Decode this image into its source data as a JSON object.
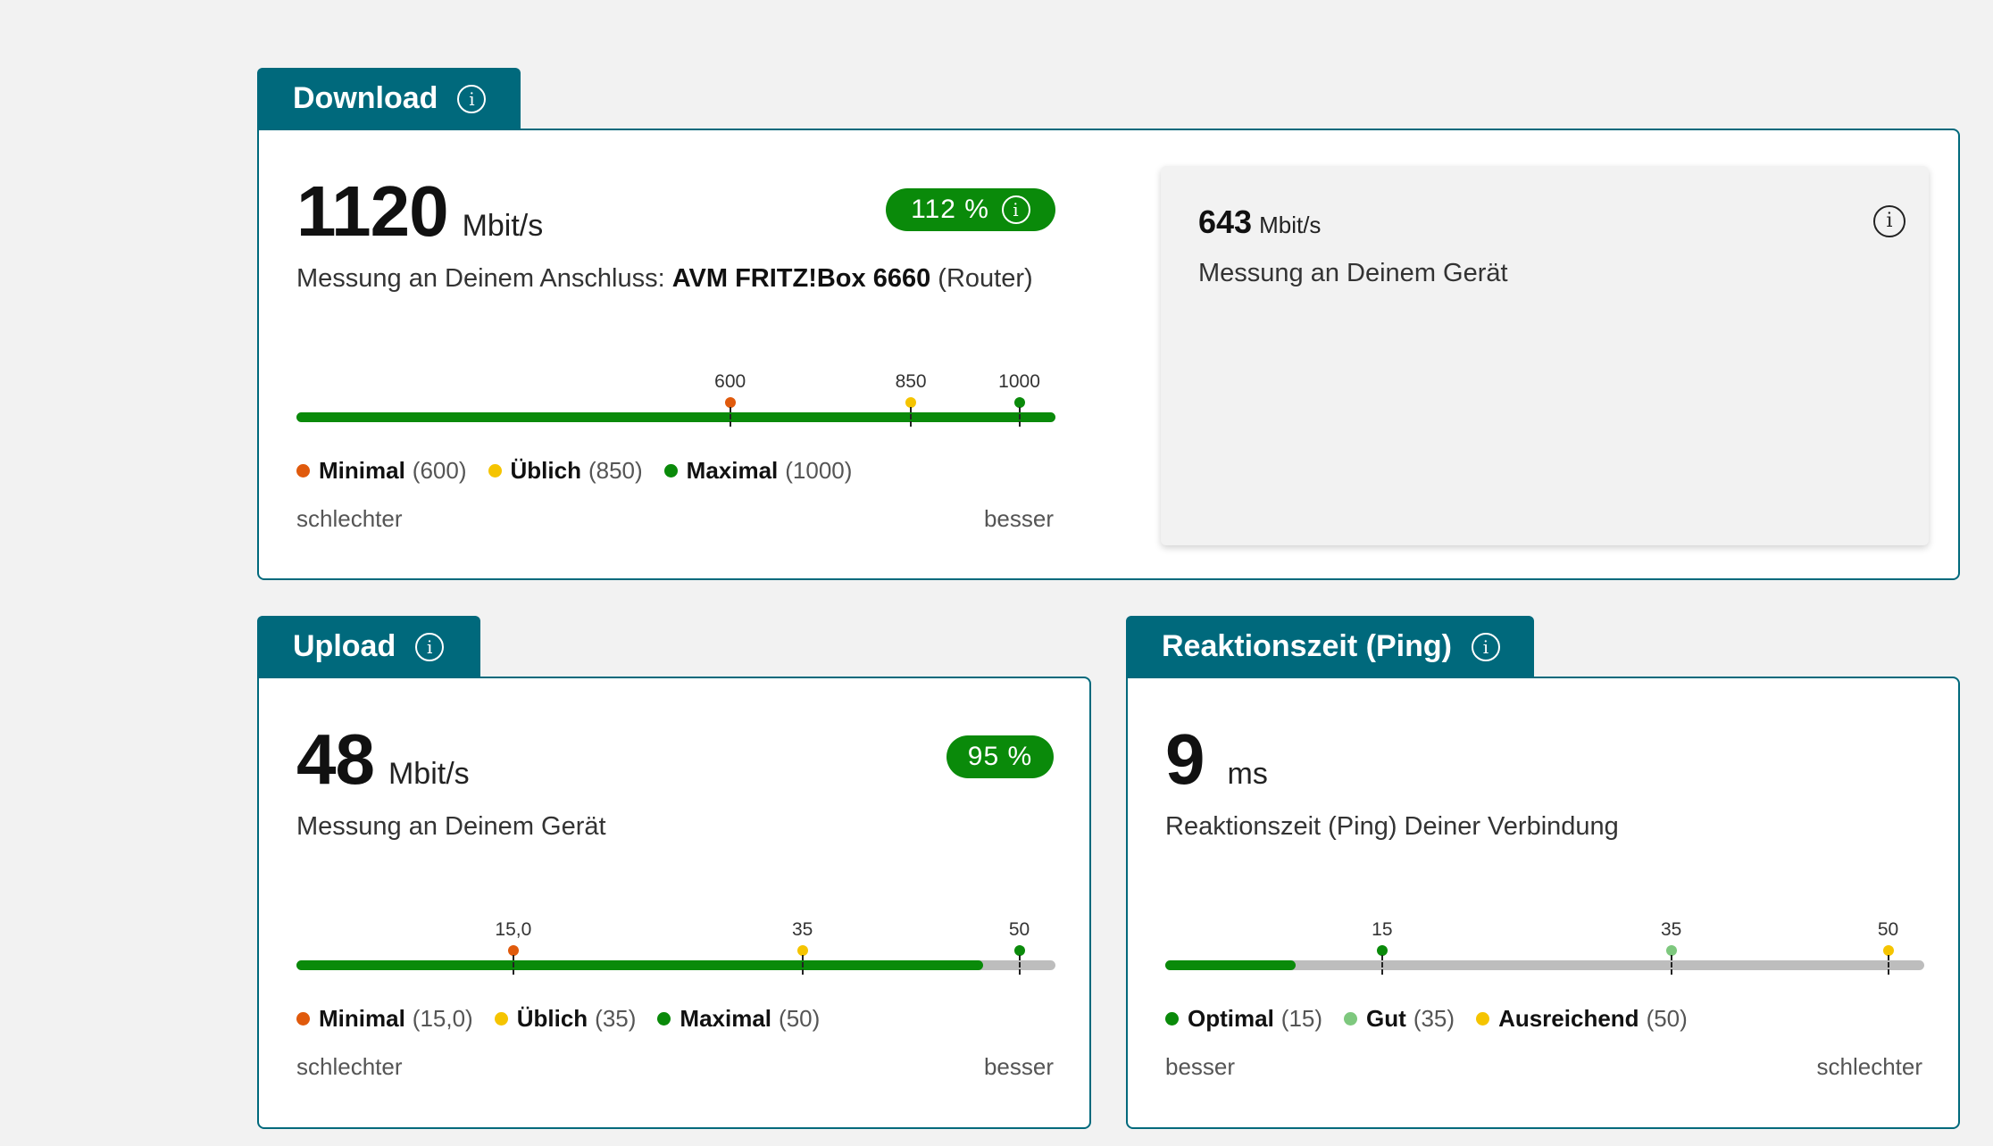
{
  "colors": {
    "tab": "#00697c",
    "good": "#0a8a0a",
    "minimal": "#e05a0c",
    "ueblich": "#f5c400",
    "maximal": "#0a8a0a",
    "gut": "#7ec87e",
    "track": "#bdbdbd"
  },
  "download": {
    "tab_label": "Download",
    "info_icon": "info-icon",
    "value": "1120",
    "unit": "Mbit/s",
    "percent": "112 %",
    "desc_prefix": "Messung an Deinem Anschluss: ",
    "device_name": "AVM FRITZ!Box 6660",
    "desc_suffix": " (Router)",
    "scale": {
      "min": 0,
      "max": 1050,
      "fill_value": 1050,
      "ticks": [
        {
          "label": "600",
          "value": 600,
          "color": "minimal"
        },
        {
          "label": "850",
          "value": 850,
          "color": "ueblich"
        },
        {
          "label": "1000",
          "value": 1000,
          "color": "maximal"
        }
      ]
    },
    "legend": [
      {
        "name": "Minimal",
        "value": "(600)",
        "color": "minimal"
      },
      {
        "name": "Üblich",
        "value": "(850)",
        "color": "ueblich"
      },
      {
        "name": "Maximal",
        "value": "(1000)",
        "color": "maximal"
      }
    ],
    "left_label": "schlechter",
    "right_label": "besser",
    "device_measure": {
      "value": "643",
      "unit": "Mbit/s",
      "desc": "Messung an Deinem Gerät"
    }
  },
  "upload": {
    "tab_label": "Upload",
    "value": "48",
    "unit": "Mbit/s",
    "percent": "95 %",
    "desc": "Messung an Deinem Gerät",
    "scale": {
      "min": 0,
      "max": 52.5,
      "fill_value": 47.5,
      "ticks": [
        {
          "label": "15,0",
          "value": 15,
          "color": "minimal"
        },
        {
          "label": "35",
          "value": 35,
          "color": "ueblich"
        },
        {
          "label": "50",
          "value": 50,
          "color": "maximal"
        }
      ]
    },
    "legend": [
      {
        "name": "Minimal",
        "value": "(15,0)",
        "color": "minimal"
      },
      {
        "name": "Üblich",
        "value": "(35)",
        "color": "ueblich"
      },
      {
        "name": "Maximal",
        "value": "(50)",
        "color": "maximal"
      }
    ],
    "left_label": "schlechter",
    "right_label": "besser"
  },
  "ping": {
    "tab_label": "Reaktionszeit (Ping)",
    "value": "9",
    "unit": "ms",
    "desc": "Reaktionszeit (Ping) Deiner Verbindung",
    "scale": {
      "min": 0,
      "max": 52.5,
      "fill_value": 9,
      "ticks": [
        {
          "label": "15",
          "value": 15,
          "color": "good"
        },
        {
          "label": "35",
          "value": 35,
          "color": "gut"
        },
        {
          "label": "50",
          "value": 50,
          "color": "ueblich"
        }
      ]
    },
    "legend": [
      {
        "name": "Optimal",
        "value": "(15)",
        "color": "good"
      },
      {
        "name": "Gut",
        "value": "(35)",
        "color": "gut"
      },
      {
        "name": "Ausreichend",
        "value": "(50)",
        "color": "ueblich"
      }
    ],
    "left_label": "besser",
    "right_label": "schlechter"
  }
}
